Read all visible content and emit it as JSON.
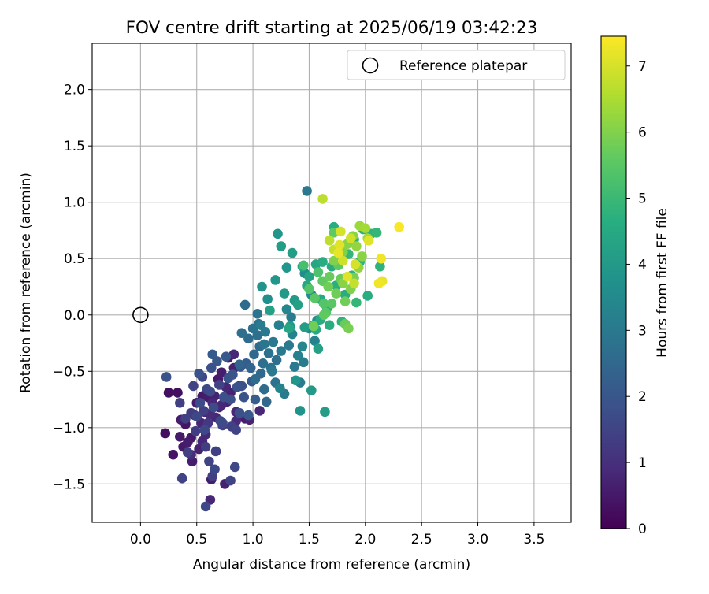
{
  "chart_data": {
    "type": "scatter",
    "title": "FOV centre drift starting at 2025/06/19 03:42:23",
    "xlabel": "Angular distance from reference (arcmin)",
    "ylabel": "Rotation from reference (arcmin)",
    "xlim": [
      -0.43,
      3.83
    ],
    "ylim": [
      -1.84,
      2.41
    ],
    "x_ticks": [
      "0.0",
      "0.5",
      "1.0",
      "1.5",
      "2.0",
      "2.5",
      "3.0",
      "3.5"
    ],
    "y_ticks": [
      "−1.5",
      "−1.0",
      "−0.5",
      "0.0",
      "0.5",
      "1.0",
      "1.5",
      "2.0"
    ],
    "grid": true,
    "legend": {
      "position": "top-right",
      "entries": [
        {
          "label": "Reference platepar",
          "marker": "open-circle",
          "color": "#000000"
        }
      ]
    },
    "reference_point": {
      "x": 0.0,
      "y": 0.0
    },
    "colorbar": {
      "label": "Hours from first FF file",
      "range": [
        0,
        7.45
      ],
      "ticks": [
        "0",
        "1",
        "2",
        "3",
        "4",
        "5",
        "6",
        "7"
      ],
      "colormap": "viridis"
    },
    "series": [
      {
        "c_unit": "hours",
        "points": [
          [
            0.22,
            -1.05,
            0.3
          ],
          [
            0.25,
            -0.69,
            0.3
          ],
          [
            0.29,
            -1.24,
            0.4
          ],
          [
            0.33,
            -0.69,
            0.3
          ],
          [
            0.35,
            -1.08,
            0.5
          ],
          [
            0.36,
            -0.93,
            0.6
          ],
          [
            0.38,
            -1.17,
            0.5
          ],
          [
            0.4,
            -0.97,
            0.4
          ],
          [
            0.42,
            -1.13,
            0.6
          ],
          [
            0.45,
            -1.09,
            0.5
          ],
          [
            0.46,
            -1.3,
            0.6
          ],
          [
            0.48,
            -0.89,
            0.7
          ],
          [
            0.5,
            -0.78,
            0.6
          ],
          [
            0.52,
            -1.19,
            0.7
          ],
          [
            0.54,
            -0.96,
            0.8
          ],
          [
            0.55,
            -0.72,
            0.5
          ],
          [
            0.57,
            -0.86,
            0.7
          ],
          [
            0.58,
            -1.06,
            0.8
          ],
          [
            0.6,
            -0.73,
            0.6
          ],
          [
            0.62,
            -0.88,
            0.9
          ],
          [
            0.63,
            -1.46,
            0.6
          ],
          [
            0.64,
            -0.78,
            0.8
          ],
          [
            0.66,
            -0.72,
            0.7
          ],
          [
            0.67,
            -0.91,
            0.8
          ],
          [
            0.69,
            -0.57,
            0.5
          ],
          [
            0.7,
            -0.82,
            0.8
          ],
          [
            0.72,
            -0.51,
            0.6
          ],
          [
            0.75,
            -1.5,
            0.7
          ],
          [
            0.78,
            -0.38,
            0.6
          ],
          [
            0.8,
            -0.69,
            0.7
          ],
          [
            0.83,
            -0.47,
            0.7
          ],
          [
            0.85,
            -0.86,
            0.8
          ],
          [
            0.88,
            -0.63,
            0.8
          ],
          [
            0.93,
            -0.92,
            0.6
          ],
          [
            0.97,
            -0.93,
            0.7
          ],
          [
            1.06,
            -0.85,
            0.8
          ],
          [
            0.55,
            -1.12,
            0.8
          ],
          [
            0.77,
            -0.77,
            0.7
          ],
          [
            0.62,
            -1.64,
            0.8
          ],
          [
            0.83,
            -0.35,
            0.8
          ],
          [
            0.76,
            -0.64,
            0.8
          ],
          [
            0.72,
            -0.8,
            0.8
          ],
          [
            0.45,
            -1.24,
            0.9
          ],
          [
            0.85,
            -0.94,
            0.9
          ],
          [
            0.23,
            -0.55,
            1.9
          ],
          [
            0.35,
            -0.78,
            1.4
          ],
          [
            0.37,
            -1.45,
            1.5
          ],
          [
            0.4,
            -0.92,
            1.4
          ],
          [
            0.42,
            -1.22,
            1.4
          ],
          [
            0.45,
            -0.87,
            1.3
          ],
          [
            0.47,
            -0.63,
            1.5
          ],
          [
            0.49,
            -1.03,
            1.3
          ],
          [
            0.5,
            -0.9,
            1.6
          ],
          [
            0.52,
            -0.52,
            1.9
          ],
          [
            0.53,
            -0.78,
            1.7
          ],
          [
            0.55,
            -0.55,
            1.6
          ],
          [
            0.56,
            -0.85,
            1.4
          ],
          [
            0.57,
            -1.02,
            1.6
          ],
          [
            0.58,
            -1.17,
            1.3
          ],
          [
            0.59,
            -0.66,
            1.6
          ],
          [
            0.6,
            -0.96,
            1.2
          ],
          [
            0.61,
            -1.3,
            1.5
          ],
          [
            0.62,
            -0.68,
            1.7
          ],
          [
            0.63,
            -0.47,
            1.8
          ],
          [
            0.64,
            -1.43,
            1.4
          ],
          [
            0.65,
            -0.82,
            1.7
          ],
          [
            0.66,
            -1.37,
            1.6
          ],
          [
            0.67,
            -1.21,
            1.4
          ],
          [
            0.68,
            -0.41,
            2
          ],
          [
            0.7,
            -0.62,
            1.5
          ],
          [
            0.71,
            -0.94,
            1.6
          ],
          [
            0.73,
            -0.98,
            1.4
          ],
          [
            0.74,
            -0.73,
            1.8
          ],
          [
            0.76,
            -0.37,
            2
          ],
          [
            0.78,
            -0.56,
            1.9
          ],
          [
            0.8,
            -0.75,
            1.8
          ],
          [
            0.8,
            -1.47,
            1.5
          ],
          [
            0.81,
            -0.99,
            1.4
          ],
          [
            0.82,
            -0.53,
            1.9
          ],
          [
            0.84,
            -1.35,
            1.6
          ],
          [
            0.85,
            -1.02,
            1.5
          ],
          [
            0.86,
            -0.64,
            1.9
          ],
          [
            0.88,
            -0.87,
            1.8
          ],
          [
            0.9,
            -0.63,
            1.8
          ],
          [
            0.92,
            -0.73,
            1.9
          ],
          [
            0.94,
            -0.43,
            2.2
          ],
          [
            0.96,
            -0.89,
            2
          ],
          [
            0.99,
            -0.59,
            2.1
          ],
          [
            1.02,
            -0.75,
            2.2
          ],
          [
            0.73,
            -0.96,
            1.7
          ],
          [
            0.89,
            -0.46,
            2
          ],
          [
            0.58,
            -1.7,
            1.6
          ],
          [
            0.64,
            -0.35,
            2.1
          ],
          [
            0.88,
            -0.44,
            2.4
          ],
          [
            0.9,
            -0.16,
            2.7
          ],
          [
            0.93,
            0.09,
            2.6
          ],
          [
            0.96,
            -0.21,
            2.6
          ],
          [
            0.98,
            -0.47,
            2.4
          ],
          [
            1,
            -0.12,
            2.8
          ],
          [
            1.01,
            -0.35,
            2.5
          ],
          [
            1.02,
            -0.57,
            2.6
          ],
          [
            1.04,
            -0.18,
            2.7
          ],
          [
            1.05,
            -0.08,
            2.8
          ],
          [
            1.06,
            -0.28,
            2.6
          ],
          [
            1.07,
            -0.52,
            2.5
          ],
          [
            1.09,
            -0.43,
            2.7
          ],
          [
            1.1,
            -0.26,
            2.9
          ],
          [
            1.1,
            -0.66,
            2.6
          ],
          [
            1.11,
            -0.15,
            3
          ],
          [
            1.12,
            -0.77,
            2.5
          ],
          [
            1.14,
            -0.34,
            2.8
          ],
          [
            1.16,
            -0.47,
            2.8
          ],
          [
            1.18,
            -0.24,
            3
          ],
          [
            1.2,
            -0.6,
            2.8
          ],
          [
            1.21,
            -0.4,
            2.7
          ],
          [
            1.23,
            -0.09,
            3.2
          ],
          [
            1.25,
            -0.32,
            3
          ],
          [
            1.28,
            -0.7,
            3
          ],
          [
            1.3,
            0.05,
            3.4
          ],
          [
            1.32,
            -0.27,
            3
          ],
          [
            1.35,
            -0.17,
            3.3
          ],
          [
            1.37,
            -0.46,
            3
          ],
          [
            1.4,
            -0.36,
            3.2
          ],
          [
            1.42,
            -0.6,
            3.1
          ],
          [
            1.44,
            -0.28,
            3.4
          ],
          [
            1.46,
            0.37,
            3.6
          ],
          [
            1.48,
            1.1,
            3
          ],
          [
            1.5,
            -0.12,
            3.4
          ],
          [
            1.52,
            0.18,
            3.5
          ],
          [
            1.55,
            -0.23,
            3.3
          ],
          [
            1.57,
            -0.05,
            3.6
          ],
          [
            1.04,
            0.01,
            2.9
          ],
          [
            1.07,
            -0.09,
            3.1
          ],
          [
            1.17,
            -0.5,
            3
          ],
          [
            1.34,
            -0.02,
            3.1
          ],
          [
            1.24,
            -0.65,
            3.3
          ],
          [
            1.45,
            -0.42,
            3.1
          ],
          [
            1.08,
            0.25,
            3.8
          ],
          [
            1.13,
            0.14,
            3.7
          ],
          [
            1.2,
            0.31,
            3.9
          ],
          [
            1.22,
            0.72,
            3.9
          ],
          [
            1.25,
            0.61,
            4.1
          ],
          [
            1.28,
            0.19,
            4
          ],
          [
            1.3,
            0.42,
            3.9
          ],
          [
            1.33,
            -0.1,
            4
          ],
          [
            1.35,
            0.55,
            4.1
          ],
          [
            1.37,
            0.13,
            4
          ],
          [
            1.38,
            -0.58,
            3.9
          ],
          [
            1.4,
            0.09,
            4.2
          ],
          [
            1.42,
            -0.85,
            3.8
          ],
          [
            1.44,
            0.43,
            4.3
          ],
          [
            1.46,
            -0.11,
            4.1
          ],
          [
            1.48,
            0.26,
            4.4
          ],
          [
            1.5,
            0.34,
            4.3
          ],
          [
            1.52,
            -0.67,
            4
          ],
          [
            1.54,
            -0.09,
            4.3
          ],
          [
            1.56,
            0.45,
            4.4
          ],
          [
            1.58,
            -0.3,
            4.2
          ],
          [
            1.6,
            0.14,
            4.5
          ],
          [
            1.62,
            0.47,
            4.6
          ],
          [
            1.64,
            -0.86,
            4.1
          ],
          [
            1.66,
            0.06,
            4.5
          ],
          [
            1.68,
            -0.09,
            4.6
          ],
          [
            1.7,
            0.43,
            4.5
          ],
          [
            1.72,
            0.78,
            4.6
          ],
          [
            1.74,
            0.26,
            4.7
          ],
          [
            1.77,
            0.61,
            4.6
          ],
          [
            1.79,
            -0.06,
            4.8
          ],
          [
            1.82,
            0.18,
            4.6
          ],
          [
            1.85,
            0.54,
            4.9
          ],
          [
            1.88,
            0.35,
            4.8
          ],
          [
            1.9,
            0.67,
            4.7
          ],
          [
            1.92,
            0.11,
            4.9
          ],
          [
            1.95,
            0.47,
            4.8
          ],
          [
            1.98,
            0.76,
            4.7
          ],
          [
            2.02,
            0.17,
            4.6
          ],
          [
            2.05,
            0.72,
            4.8
          ],
          [
            2.1,
            0.73,
            4.9
          ],
          [
            2.13,
            0.43,
            4.8
          ],
          [
            1.15,
            0.04,
            4.2
          ],
          [
            1.32,
            -0.12,
            4.4
          ],
          [
            1.56,
            -0.13,
            4.5
          ],
          [
            1.6,
            -0.04,
            4.6
          ],
          [
            1.45,
            0.44,
            5.2
          ],
          [
            1.5,
            0.23,
            5.4
          ],
          [
            1.55,
            0.15,
            5.5
          ],
          [
            1.58,
            0.38,
            5.3
          ],
          [
            1.62,
            0.3,
            5.6
          ],
          [
            1.63,
            0.1,
            5.4
          ],
          [
            1.65,
            0.02,
            5.5
          ],
          [
            1.68,
            0.34,
            5.7
          ],
          [
            1.7,
            0.1,
            5.5
          ],
          [
            1.72,
            0.73,
            5.6
          ],
          [
            1.74,
            0.19,
            5.8
          ],
          [
            1.76,
            0.44,
            5.6
          ],
          [
            1.78,
            0.32,
            5.7
          ],
          [
            1.8,
            0.56,
            6
          ],
          [
            1.82,
            0.12,
            5.8
          ],
          [
            1.84,
            0.63,
            6.1
          ],
          [
            1.85,
            -0.12,
            5.9
          ],
          [
            1.87,
            0.23,
            6
          ],
          [
            1.89,
            0.7,
            6.1
          ],
          [
            1.9,
            0.33,
            5.9
          ],
          [
            1.92,
            0.61,
            6.2
          ],
          [
            1.94,
            0.42,
            6.2
          ],
          [
            1.95,
            0.79,
            6.3
          ],
          [
            1.97,
            0.52,
            6.1
          ],
          [
            2,
            0.77,
            6.4
          ],
          [
            2.02,
            0.68,
            6.4
          ],
          [
            1.63,
            0.0,
            5.6
          ],
          [
            1.72,
            0.48,
            6.0
          ],
          [
            1.8,
            0.28,
            6.1
          ],
          [
            1.67,
            0.25,
            5.8
          ],
          [
            1.54,
            -0.1,
            5.8
          ],
          [
            1.82,
            -0.08,
            5.7
          ],
          [
            1.62,
            1.03,
            6.7
          ],
          [
            1.68,
            0.66,
            6.7
          ],
          [
            1.72,
            0.58,
            6.8
          ],
          [
            1.76,
            0.55,
            7.2
          ],
          [
            1.78,
            0.74,
            7
          ],
          [
            1.8,
            0.48,
            6.9
          ],
          [
            1.84,
            0.34,
            7.1
          ],
          [
            1.87,
            0.68,
            6.9
          ],
          [
            1.91,
            0.45,
            7.0
          ],
          [
            2.03,
            0.66,
            7.1
          ],
          [
            2.12,
            0.28,
            7.3
          ],
          [
            2.14,
            0.5,
            7.3
          ],
          [
            2.15,
            0.3,
            7.2
          ],
          [
            2.3,
            0.78,
            7.4
          ],
          [
            1.77,
            0.62,
            7.1
          ],
          [
            1.9,
            0.28,
            6.8
          ]
        ]
      }
    ]
  }
}
